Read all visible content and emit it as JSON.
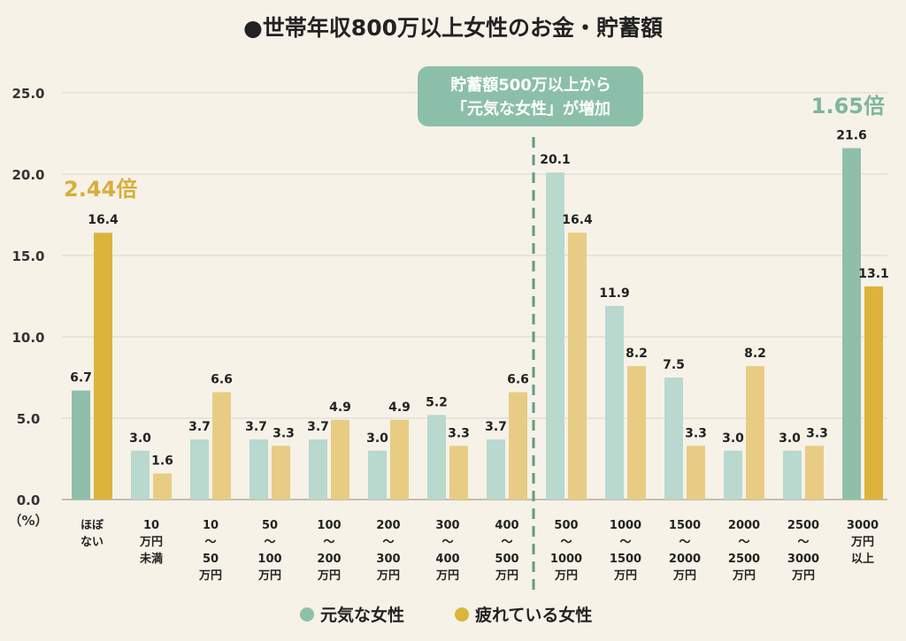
{
  "chart_data": {
    "type": "bar",
    "title": "●世帯年収800万以上女性のお金・貯蓄額",
    "ylabel": "（%）",
    "ylim": [
      0,
      25
    ],
    "yticks": [
      "0.0",
      "5.0",
      "10.0",
      "15.0",
      "20.0",
      "25.0"
    ],
    "grid": true,
    "legend_position": "bottom",
    "categories": [
      [
        "ほぼ",
        "ない"
      ],
      [
        "10",
        "万円",
        "未満"
      ],
      [
        "10",
        "〜",
        "50",
        "万円"
      ],
      [
        "50",
        "〜",
        "100",
        "万円"
      ],
      [
        "100",
        "〜",
        "200",
        "万円"
      ],
      [
        "200",
        "〜",
        "300",
        "万円"
      ],
      [
        "300",
        "〜",
        "400",
        "万円"
      ],
      [
        "400",
        "〜",
        "500",
        "万円"
      ],
      [
        "500",
        "〜",
        "1000",
        "万円"
      ],
      [
        "1000",
        "〜",
        "1500",
        "万円"
      ],
      [
        "1500",
        "〜",
        "2000",
        "万円"
      ],
      [
        "2000",
        "〜",
        "2500",
        "万円"
      ],
      [
        "2500",
        "〜",
        "3000",
        "万円"
      ],
      [
        "3000",
        "万円",
        "以上"
      ]
    ],
    "series": [
      {
        "name": "元気な女性",
        "color": "#b9d8ce",
        "highlight_color": "#8fbfab",
        "values": [
          6.7,
          3.0,
          3.7,
          3.7,
          3.7,
          3.0,
          5.2,
          3.7,
          20.1,
          11.9,
          7.5,
          3.0,
          3.0,
          21.6
        ],
        "labels": [
          "6.7",
          "3.0",
          "3.7",
          "3.7",
          "3.7",
          "3.0",
          "5.2",
          "3.7",
          "20.1",
          "11.9",
          "7.5",
          "3.0",
          "3.0",
          "21.6"
        ]
      },
      {
        "name": "疲れている女性",
        "color": "#e8cc84",
        "highlight_color": "#dcb43c",
        "values": [
          16.4,
          1.6,
          6.6,
          3.3,
          4.9,
          4.9,
          3.3,
          6.6,
          16.4,
          8.2,
          3.3,
          8.2,
          3.3,
          13.1
        ],
        "labels": [
          "16.4",
          "1.6",
          "6.6",
          "3.3",
          "4.9",
          "4.9",
          "3.3",
          "6.6",
          "16.4",
          "8.2",
          "3.3",
          "8.2",
          "3.3",
          "13.1"
        ]
      }
    ],
    "highlighted_categories": [
      0,
      13
    ],
    "annotations": {
      "left_ratio": "2.44倍",
      "right_ratio": "1.65倍",
      "banner_line1": "貯蓄額500万以上から",
      "banner_line2": "「元気な女性」が増加"
    },
    "colors": {
      "left_ratio": "#d8ae3a",
      "right_ratio": "#7fb59e",
      "banner": "#8cbfa9",
      "divider": "#5e9c86"
    }
  }
}
